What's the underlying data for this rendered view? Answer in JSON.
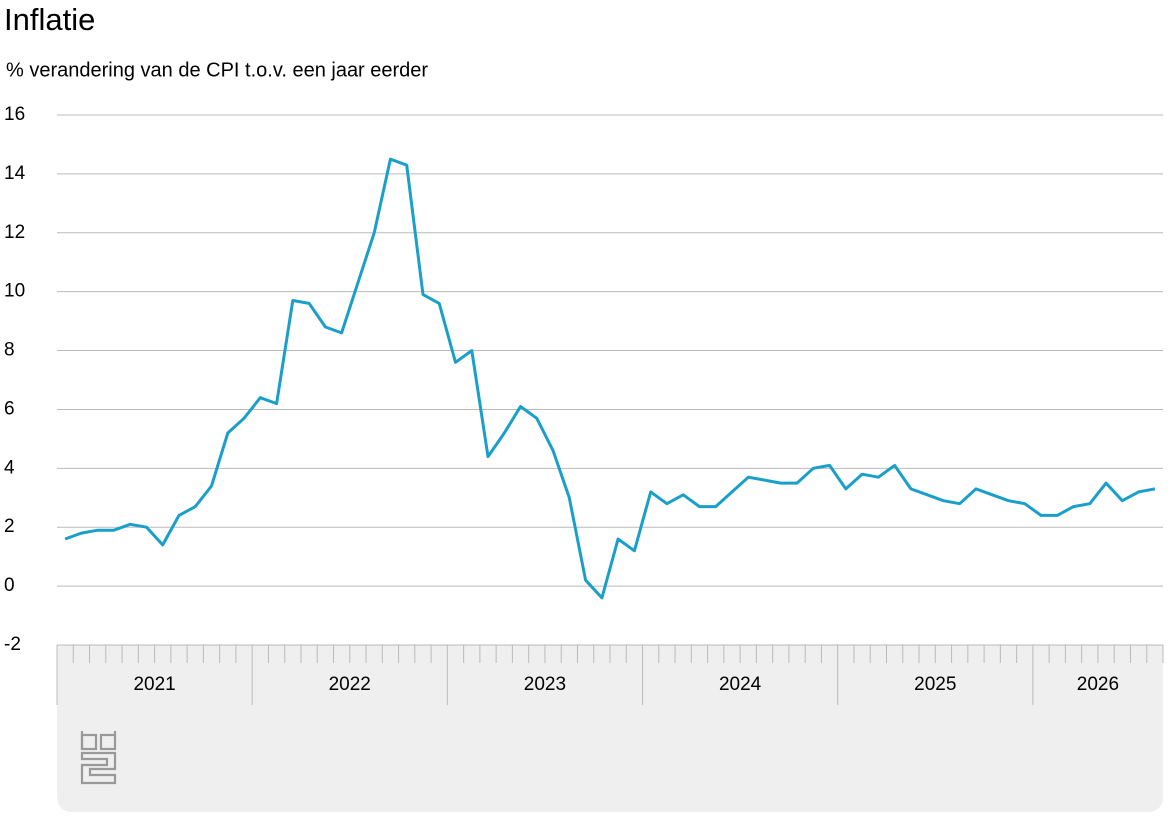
{
  "chart_data": {
    "type": "line",
    "title": "Inflatie",
    "subtitle": "% verandering van de CPI t.o.v. een jaar eerder",
    "years": [
      "2021",
      "2022",
      "2023",
      "2024",
      "2025",
      "2026"
    ],
    "color": "#1a9fcb",
    "values": [
      1.6,
      1.8,
      1.9,
      1.9,
      2.1,
      2.0,
      1.4,
      2.4,
      2.7,
      3.4,
      5.2,
      5.7,
      6.4,
      6.2,
      9.7,
      9.6,
      8.8,
      8.6,
      10.3,
      12.0,
      14.5,
      14.3,
      9.9,
      9.6,
      7.6,
      8.0,
      4.4,
      5.2,
      6.1,
      5.7,
      4.6,
      3.0,
      0.2,
      -0.4,
      1.6,
      1.2,
      3.2,
      2.8,
      3.1,
      2.7,
      2.7,
      3.2,
      3.7,
      3.6,
      3.5,
      3.5,
      4.0,
      4.1,
      3.3,
      3.8,
      3.7,
      4.1,
      3.3,
      3.1,
      2.9,
      2.8,
      3.3,
      3.1,
      2.9,
      2.8,
      2.4,
      2.4,
      2.7,
      2.8,
      3.5,
      2.9,
      3.2,
      3.3
    ],
    "ylim": [
      -2,
      16
    ],
    "yticks": [
      -2,
      0,
      2,
      4,
      6,
      8,
      10,
      12,
      14,
      16
    ],
    "grid": true
  }
}
